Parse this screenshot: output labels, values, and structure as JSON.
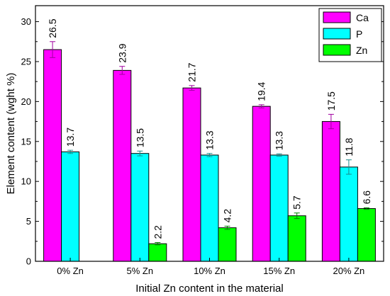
{
  "chart_data": {
    "type": "bar",
    "title": "",
    "xlabel": "Initial Zn content in the material",
    "ylabel": "Element content (wght %)",
    "categories": [
      "0% Zn",
      "5% Zn",
      "10% Zn",
      "15% Zn",
      "20% Zn"
    ],
    "ylim": [
      0,
      32
    ],
    "yticks": [
      0,
      5,
      10,
      15,
      20,
      25,
      30
    ],
    "legend_position": "top-right",
    "grid": false,
    "series": [
      {
        "name": "Ca",
        "color": "#ff00ff",
        "values": [
          26.5,
          23.9,
          21.7,
          19.4,
          17.5
        ],
        "errors": [
          1.0,
          0.5,
          0.3,
          0.2,
          0.9
        ],
        "labels": [
          "26.5",
          "23.9",
          "21.7",
          "19.4",
          "17.5"
        ]
      },
      {
        "name": "P",
        "color": "#00ffff",
        "values": [
          13.7,
          13.5,
          13.3,
          13.3,
          11.8
        ],
        "errors": [
          0.2,
          0.3,
          0.2,
          0.15,
          0.9
        ],
        "labels": [
          "13.7",
          "13.5",
          "13.3",
          "13.3",
          "11.8"
        ]
      },
      {
        "name": "Zn",
        "color": "#00ff00",
        "values": [
          null,
          2.2,
          4.2,
          5.7,
          6.6
        ],
        "errors": [
          null,
          0.15,
          0.2,
          0.35,
          0.1
        ],
        "labels": [
          "",
          "2.2",
          "4.2",
          "5.7",
          "6.6"
        ]
      }
    ]
  }
}
